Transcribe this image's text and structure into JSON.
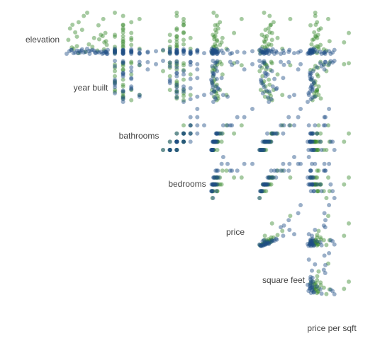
{
  "chart_data": {
    "type": "scatter",
    "layout": "upper-triangle scatterplot matrix",
    "variables": [
      "elevation",
      "year built",
      "bathrooms",
      "bedrooms",
      "price",
      "square feet",
      "price per sqft"
    ],
    "groups": [
      {
        "name": "",
        "color": "#3a8a2e"
      },
      {
        "name": "",
        "color": "#1f4e86"
      }
    ],
    "records": [
      [
        1,
        1930,
        1,
        1,
        520000,
        580,
        896,
        0
      ],
      [
        3,
        1950,
        1,
        2,
        650000,
        850,
        764,
        0
      ],
      [
        5,
        1985,
        1,
        0,
        590000,
        450,
        1311,
        0
      ],
      [
        7,
        2004,
        1,
        1,
        1500000,
        1250,
        1200,
        0
      ],
      [
        10,
        1910,
        2,
        2,
        875000,
        1120,
        781,
        0
      ],
      [
        12,
        1925,
        2,
        2,
        1250000,
        1390,
        899,
        0
      ],
      [
        15,
        1960,
        2,
        3,
        1050000,
        1600,
        656,
        0
      ],
      [
        20,
        2010,
        2,
        1,
        1480000,
        1020,
        1450,
        0
      ],
      [
        22,
        1900,
        3,
        3,
        1400000,
        2000,
        700,
        0
      ],
      [
        25,
        1975,
        3,
        4,
        2450000,
        2700,
        907,
        0
      ],
      [
        28,
        2000,
        2,
        2,
        1120000,
        1350,
        829,
        0
      ],
      [
        30,
        1995,
        1,
        1,
        680000,
        720,
        944,
        0
      ],
      [
        34,
        1920,
        2,
        3,
        1320000,
        1700,
        776,
        0
      ],
      [
        40,
        1905,
        2,
        2,
        1650000,
        1550,
        1064,
        0
      ],
      [
        45,
        1988,
        2,
        3,
        1100000,
        1800,
        611,
        0
      ],
      [
        50,
        1930,
        3,
        3,
        1980000,
        2200,
        900,
        0
      ],
      [
        60,
        1945,
        2,
        2,
        1400000,
        1700,
        823,
        0
      ],
      [
        8,
        1915,
        4,
        4,
        3200000,
        3300,
        969,
        0
      ],
      [
        14,
        2012,
        3,
        2,
        2000000,
        1900,
        1052,
        0
      ],
      [
        18,
        2005,
        2,
        2,
        2300000,
        1100,
        2090,
        0
      ],
      [
        33,
        2008,
        3,
        3,
        4600000,
        2000,
        2300,
        0
      ],
      [
        55,
        2002,
        4,
        3,
        6000000,
        4300,
        1395,
        0
      ],
      [
        38,
        1940,
        2,
        2,
        1150000,
        1180,
        974,
        0
      ],
      [
        27,
        1925,
        1,
        2,
        900000,
        1050,
        857,
        0
      ],
      [
        11,
        1970,
        1,
        1,
        760000,
        800,
        950,
        0
      ],
      [
        46,
        1912,
        2,
        3,
        1560000,
        1850,
        843,
        0
      ],
      [
        23,
        1990,
        2,
        2,
        950000,
        1250,
        760,
        0
      ],
      [
        65,
        1955,
        1,
        2,
        820000,
        1000,
        820,
        0
      ],
      [
        2,
        1920,
        1,
        2,
        450000,
        850,
        529,
        1
      ],
      [
        4,
        1960,
        1,
        1,
        380000,
        600,
        633,
        1
      ],
      [
        6,
        2015,
        1,
        0,
        700000,
        420,
        1666,
        1
      ],
      [
        0,
        1895,
        2,
        3,
        780000,
        1600,
        487,
        1
      ],
      [
        1,
        1980,
        2,
        2,
        640000,
        1100,
        581,
        1
      ],
      [
        3,
        2008,
        2,
        2,
        1100000,
        1050,
        1047,
        1
      ],
      [
        2,
        1935,
        3,
        4,
        1600000,
        2600,
        615,
        1
      ],
      [
        5,
        1965,
        3,
        5,
        2300000,
        3400,
        676,
        1
      ],
      [
        0,
        2012,
        4,
        4,
        3900000,
        3100,
        1258,
        1
      ],
      [
        6,
        1910,
        4,
        5,
        3400000,
        4200,
        809,
        1
      ],
      [
        2,
        1990,
        5,
        5,
        6500000,
        5300,
        1226,
        1
      ],
      [
        4,
        2005,
        6,
        5,
        8000000,
        5600,
        1428,
        1
      ],
      [
        1,
        1928,
        2,
        2,
        900000,
        1300,
        692,
        1
      ],
      [
        3,
        1950,
        1,
        1,
        520000,
        680,
        764,
        1
      ],
      [
        5,
        1975,
        2,
        3,
        870000,
        1450,
        600,
        1
      ],
      [
        0,
        1999,
        1,
        1,
        550000,
        500,
        1100,
        1
      ],
      [
        2,
        2010,
        2,
        1,
        1300000,
        820,
        1585,
        1
      ],
      [
        4,
        1903,
        2,
        4,
        1200000,
        1900,
        631,
        1
      ],
      [
        7,
        1940,
        3,
        3,
        1350000,
        2100,
        642,
        1
      ],
      [
        3,
        1985,
        3,
        3,
        1450000,
        2000,
        725,
        1
      ],
      [
        1,
        1915,
        4,
        6,
        2600000,
        4800,
        541,
        1
      ],
      [
        6,
        1970,
        2,
        2,
        700000,
        1200,
        583,
        1
      ],
      [
        2,
        1945,
        1,
        2,
        610000,
        900,
        677,
        1
      ],
      [
        0,
        2014,
        2,
        2,
        1500000,
        1000,
        1500,
        1
      ],
      [
        5,
        1925,
        2,
        3,
        980000,
        1650,
        593,
        1
      ],
      [
        3,
        1996,
        3,
        2,
        1250000,
        1400,
        892,
        1
      ],
      [
        8,
        1955,
        1,
        1,
        480000,
        640,
        750,
        1
      ],
      [
        1,
        2003,
        4,
        4,
        4200000,
        3500,
        1200,
        1
      ],
      [
        4,
        1932,
        3,
        3,
        1750000,
        2500,
        700,
        1
      ],
      [
        2,
        1978,
        2,
        2,
        800000,
        1250,
        640,
        1
      ],
      [
        6,
        1908,
        2,
        2,
        1050000,
        1500,
        700,
        1
      ],
      [
        0,
        1962,
        3,
        4,
        1400000,
        2300,
        608,
        1
      ],
      [
        3,
        2011,
        5,
        4,
        5200000,
        4100,
        1268,
        1
      ],
      [
        5,
        1938,
        1,
        2,
        700000,
        1000,
        700,
        1
      ]
    ]
  }
}
